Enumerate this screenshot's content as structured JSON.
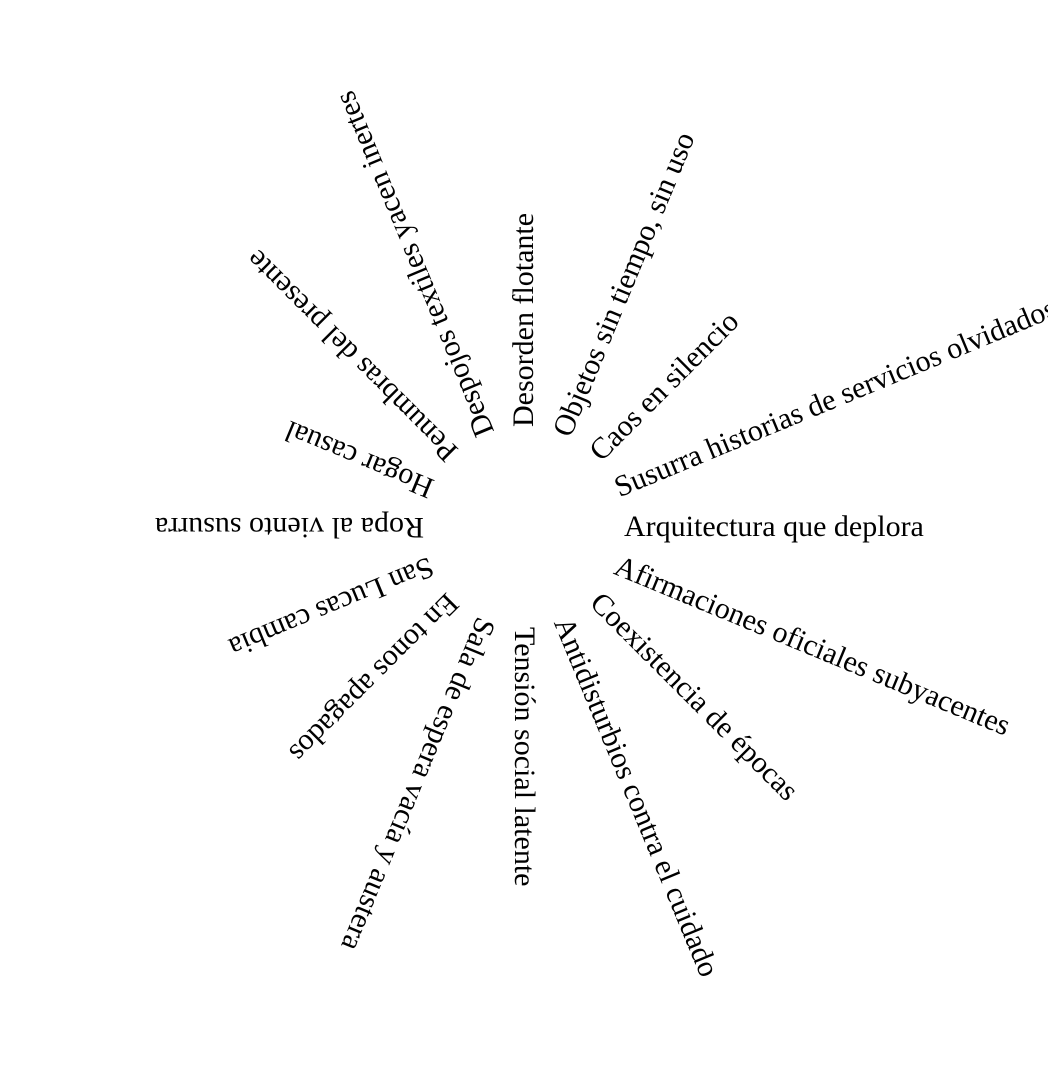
{
  "text_color": "#000000",
  "background_color": "#ffffff",
  "phrases": [
    "Arquitectura que deplora",
    "Afirmaciones oficiales subyacentes",
    "Coexistencia de épocas",
    "Antidisturbios contra el cuidado",
    "Tensión social latente",
    "Sala de espera vacía y austera",
    "En tonos apagados",
    "San Lucas cambia",
    "Ropa al viento susurra",
    "Hogar casual",
    "Penumbras del presente",
    "Despojos textiles yacen inertes",
    "Desorden flotante",
    "Objetos sin tiempo, sin uso",
    "Caos en silencio",
    "Susurra historias de servicios olvidados"
  ]
}
